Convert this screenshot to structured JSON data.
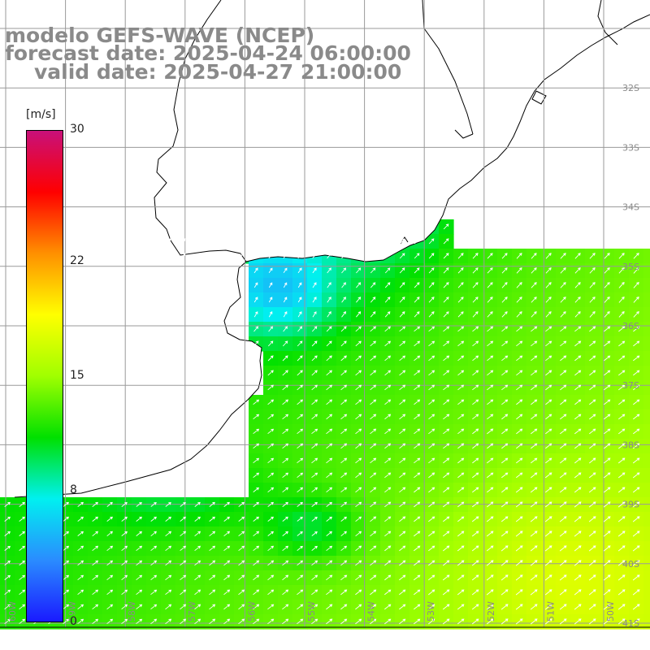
{
  "title": {
    "line1": "modelo GEFS-WAVE (NCEP)",
    "line2": "forecast date: 2025-04-24 06:00:00",
    "line3": "valid date: 2025-04-27 21:00:00"
  },
  "colorbar": {
    "unit": "[m/s]",
    "min": 0,
    "max": 30,
    "ticks": [
      {
        "label": "30",
        "value": 30
      },
      {
        "label": "22",
        "value": 22
      },
      {
        "label": "15",
        "value": 15
      },
      {
        "label": "8",
        "value": 8
      },
      {
        "label": "0",
        "value": 0
      }
    ],
    "stops": [
      "#1a1aff",
      "#2a8cff",
      "#00f0f0",
      "#00e000",
      "#a0ff00",
      "#ffff00",
      "#ff9000",
      "#ff0000",
      "#c8107a"
    ]
  },
  "map": {
    "lon_labels": [
      "60W",
      "59W",
      "58W",
      "57W",
      "56W",
      "55W",
      "54W",
      "53W",
      "52W",
      "51W",
      "50W"
    ],
    "lat_labels": [
      "32S",
      "33S",
      "34S",
      "35S",
      "36S",
      "37S",
      "38S",
      "39S",
      "40S",
      "41S"
    ],
    "lon_range": [
      -61,
      -50
    ],
    "lat_range": [
      -41.2,
      -30.4
    ],
    "land_color": "#ffffff",
    "grid_color": "#9a9a9a",
    "arrow_color": "#ffffff"
  }
}
